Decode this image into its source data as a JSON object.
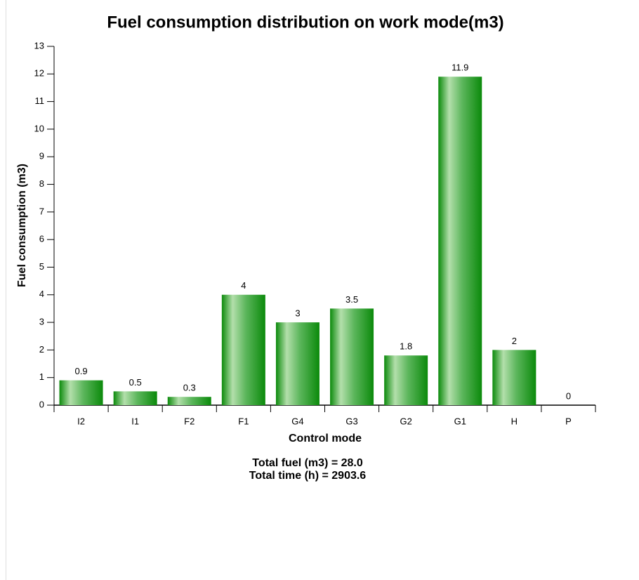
{
  "chart_data": {
    "type": "bar",
    "title": "Fuel consumption distribution on work mode(m3)",
    "xlabel": "Control mode",
    "ylabel": "Fuel consumption (m3)",
    "categories": [
      "I2",
      "I1",
      "F2",
      "F1",
      "G4",
      "G3",
      "G2",
      "G1",
      "H",
      "P"
    ],
    "values": [
      0.9,
      0.5,
      0.3,
      4,
      3,
      3.5,
      1.8,
      11.9,
      2,
      0
    ],
    "color": "#0b8a0b",
    "ylim": [
      0,
      13
    ],
    "yticks": [
      0,
      1,
      2,
      3,
      4,
      5,
      6,
      7,
      8,
      9,
      10,
      11,
      12,
      13
    ],
    "grid": false,
    "annotations": [
      "Total fuel (m3) = 28.0",
      "Total time (h) = 2903.6"
    ]
  }
}
